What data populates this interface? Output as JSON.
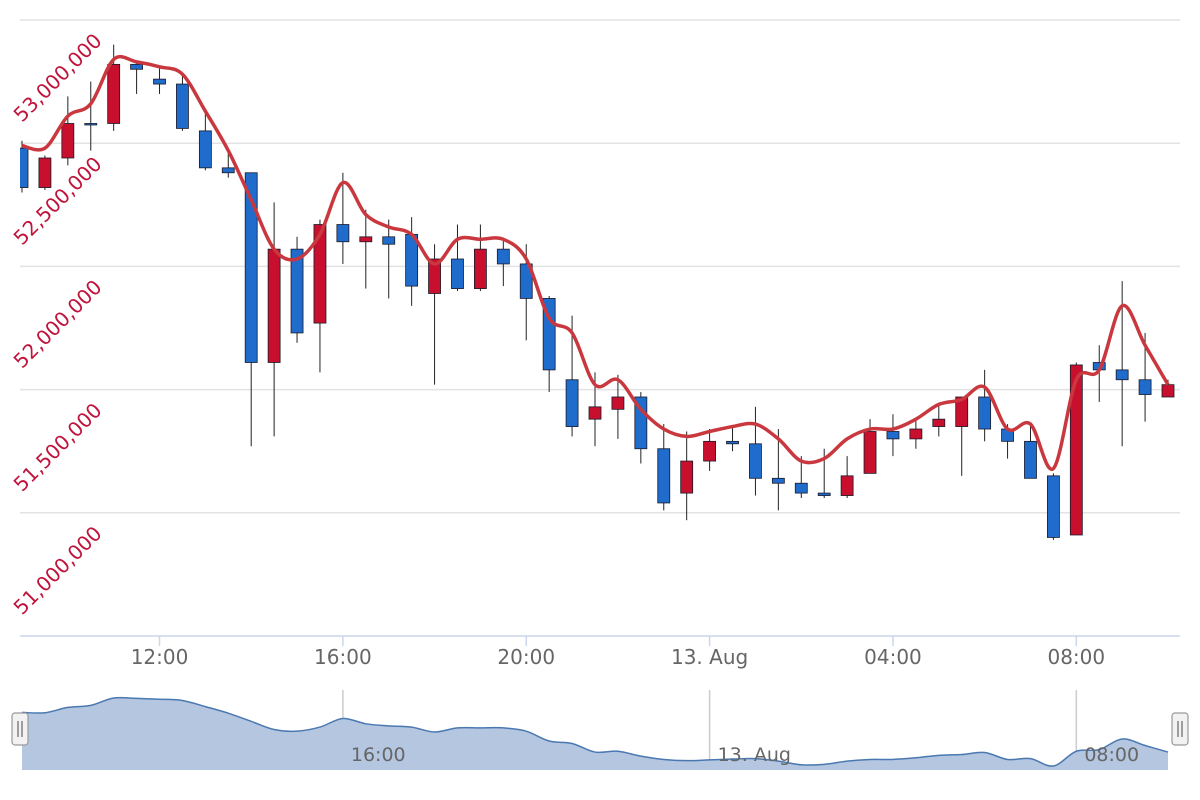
{
  "chart_data": {
    "type": "candlestick",
    "categories": [
      "09:00",
      "09:30",
      "10:00",
      "10:30",
      "11:00",
      "11:30",
      "12:00",
      "12:30",
      "13:00",
      "13:30",
      "14:00",
      "14:30",
      "15:00",
      "15:30",
      "16:00",
      "16:30",
      "17:00",
      "17:30",
      "18:00",
      "18:30",
      "19:00",
      "19:30",
      "20:00",
      "20:30",
      "21:00",
      "21:30",
      "22:00",
      "22:30",
      "23:00",
      "23:30",
      "00:00",
      "00:30",
      "01:00",
      "01:30",
      "02:00",
      "02:30",
      "03:00",
      "03:30",
      "04:00",
      "04:30",
      "05:00",
      "05:30",
      "06:00",
      "06:30",
      "07:00",
      "07:30",
      "08:00",
      "08:30",
      "09:00",
      "09:30",
      "10:00"
    ],
    "open": [
      52480000,
      52320000,
      52440000,
      52580000,
      52580000,
      52820000,
      52760000,
      52740000,
      52550000,
      52400000,
      52380000,
      51610000,
      52070000,
      51770000,
      52170000,
      52100000,
      52120000,
      52130000,
      51890000,
      52030000,
      51910000,
      52070000,
      52010000,
      51870000,
      51540000,
      51380000,
      51420000,
      51470000,
      51260000,
      51080000,
      51210000,
      51290000,
      51280000,
      51140000,
      51120000,
      51080000,
      51070000,
      51160000,
      51330000,
      51300000,
      51350000,
      51350000,
      51470000,
      51340000,
      51290000,
      51150000,
      50910000,
      51610000,
      51580000,
      51540000,
      51470000
    ],
    "high": [
      52510000,
      52450000,
      52690000,
      52750000,
      52900000,
      52830000,
      52810000,
      52780000,
      52630000,
      52470000,
      52380000,
      52260000,
      52120000,
      52190000,
      52380000,
      52230000,
      52190000,
      52200000,
      52090000,
      52170000,
      52170000,
      52110000,
      52090000,
      51880000,
      51800000,
      51570000,
      51560000,
      51490000,
      51360000,
      51330000,
      51340000,
      51350000,
      51430000,
      51340000,
      51230000,
      51260000,
      51230000,
      51380000,
      51400000,
      51380000,
      51440000,
      51470000,
      51580000,
      51360000,
      51360000,
      51160000,
      51610000,
      51680000,
      51940000,
      51730000,
      51540000
    ],
    "low": [
      52300000,
      52310000,
      52410000,
      52470000,
      52550000,
      52700000,
      52700000,
      52550000,
      52390000,
      52360000,
      51270000,
      51310000,
      51690000,
      51570000,
      52010000,
      51910000,
      51870000,
      51840000,
      51520000,
      51900000,
      51900000,
      51920000,
      51700000,
      51490000,
      51310000,
      51270000,
      51300000,
      51200000,
      51010000,
      50970000,
      51170000,
      51250000,
      51070000,
      51010000,
      51060000,
      51060000,
      51060000,
      51160000,
      51230000,
      51260000,
      51310000,
      51150000,
      51290000,
      51220000,
      51140000,
      50890000,
      50910000,
      51450000,
      51270000,
      51370000,
      51470000
    ],
    "close": [
      52320000,
      52440000,
      52580000,
      52580000,
      52820000,
      52800000,
      52740000,
      52560000,
      52400000,
      52380000,
      51610000,
      52070000,
      51730000,
      52170000,
      52100000,
      52120000,
      52090000,
      51920000,
      52030000,
      51910000,
      52070000,
      52010000,
      51870000,
      51580000,
      51350000,
      51430000,
      51470000,
      51260000,
      51040000,
      51210000,
      51290000,
      51280000,
      51140000,
      51120000,
      51080000,
      51070000,
      51150000,
      51330000,
      51300000,
      51340000,
      51380000,
      51470000,
      51340000,
      51290000,
      51140000,
      50900000,
      51600000,
      51580000,
      51540000,
      51480000,
      51520000
    ],
    "up_color": "#c8102e",
    "down_color": "#1f6ccc",
    "overlay": {
      "type": "line",
      "color": "#c9383f",
      "values": [
        52490000,
        52480000,
        52610000,
        52660000,
        52840000,
        52830000,
        52810000,
        52780000,
        52630000,
        52470000,
        52270000,
        52070000,
        52030000,
        52130000,
        52340000,
        52210000,
        52160000,
        52130000,
        52010000,
        52110000,
        52110000,
        52110000,
        52030000,
        51790000,
        51730000,
        51520000,
        51540000,
        51420000,
        51340000,
        51310000,
        51330000,
        51350000,
        51360000,
        51300000,
        51210000,
        51220000,
        51300000,
        51340000,
        51340000,
        51380000,
        51440000,
        51460000,
        51510000,
        51340000,
        51360000,
        51180000,
        51540000,
        51580000,
        51840000,
        51680000,
        51520000
      ]
    },
    "ylim": [
      50500000,
      53000000
    ],
    "yticks": [
      {
        "value": 51000000,
        "label": "51,000,000"
      },
      {
        "value": 51500000,
        "label": "51,500,000"
      },
      {
        "value": 52000000,
        "label": "52,000,000"
      },
      {
        "value": 52500000,
        "label": "52,500,000"
      },
      {
        "value": 53000000,
        "label": "53,000,000"
      }
    ],
    "xticks": [
      "12:00",
      "16:00",
      "20:00",
      {
        "value": "00:00",
        "label": "13. Aug"
      },
      "04:00",
      "08:00"
    ],
    "grid": true,
    "navigator": {
      "xticks": [
        "16:00",
        {
          "value": "00:00",
          "label": "13. Aug"
        },
        "08:00"
      ]
    }
  }
}
